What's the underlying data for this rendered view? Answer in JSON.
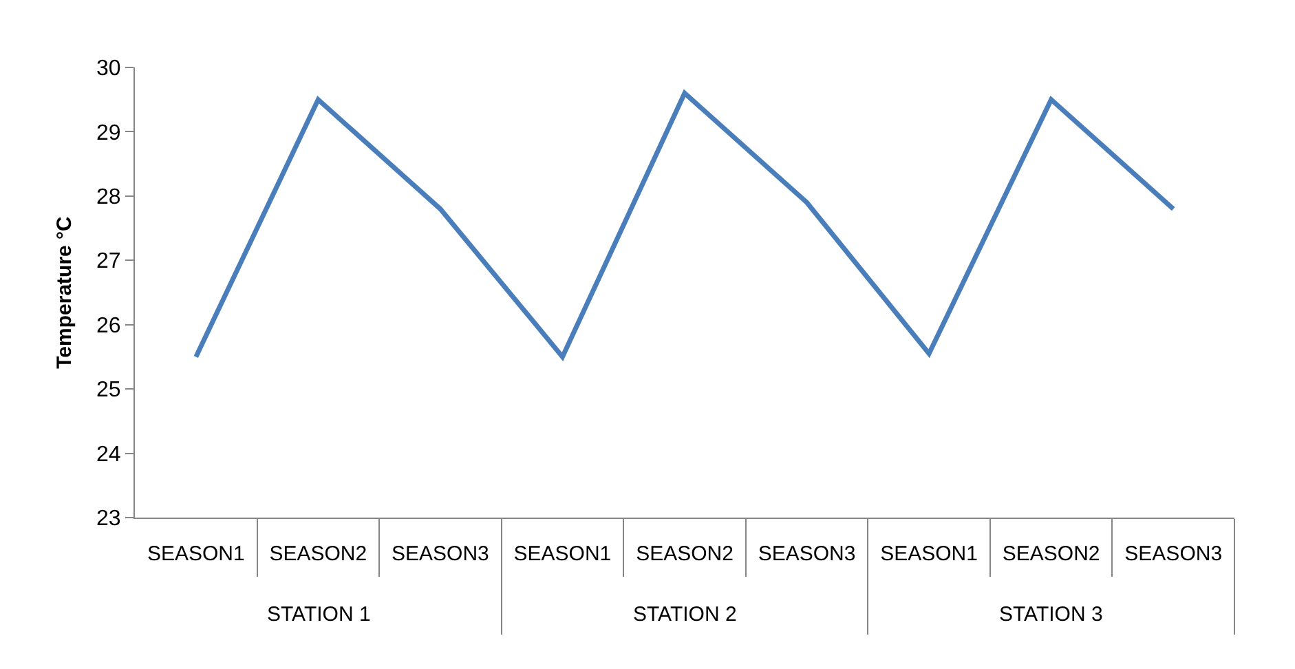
{
  "chart_data": {
    "type": "line",
    "ylabel": "Temperature °C",
    "categories": [
      "SEASON1",
      "SEASON2",
      "SEASON3",
      "SEASON1",
      "SEASON2",
      "SEASON3",
      "SEASON1",
      "SEASON2",
      "SEASON3"
    ],
    "annotations": [
      "STATION 1",
      "STATION 2",
      "STATION 3"
    ],
    "series": [
      {
        "color": "#4a7ebb",
        "values": [
          25.5,
          29.5,
          27.8,
          25.5,
          29.6,
          27.9,
          25.55,
          29.5,
          27.8
        ]
      }
    ],
    "ylim": [
      23,
      30
    ],
    "yticks": [
      23,
      24,
      25,
      26,
      27,
      28,
      29,
      30
    ]
  }
}
